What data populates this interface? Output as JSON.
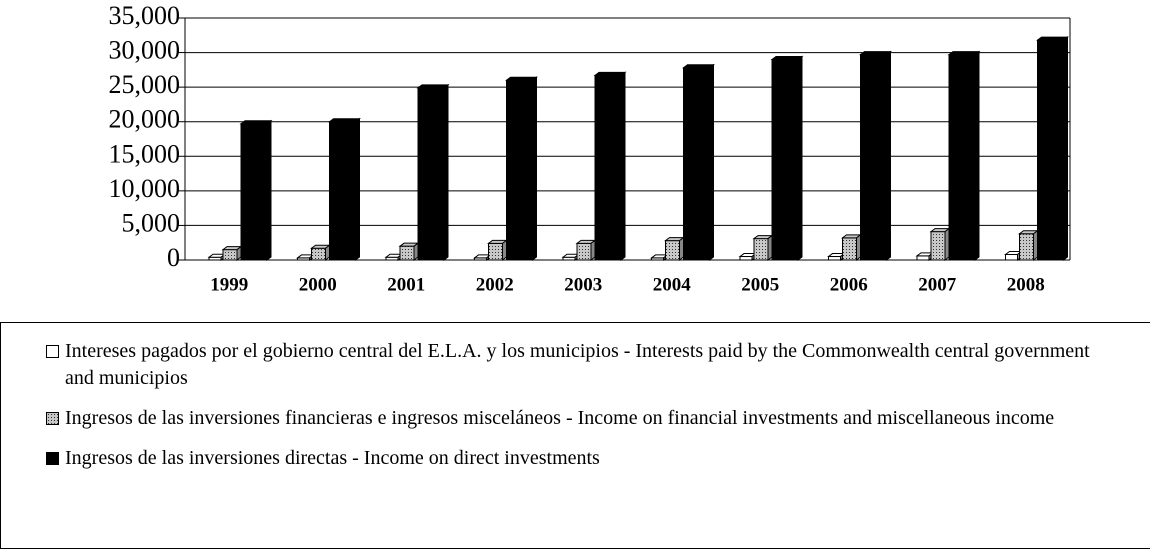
{
  "chart_data": {
    "type": "bar",
    "categories": [
      "1999",
      "2000",
      "2001",
      "2002",
      "2003",
      "2004",
      "2005",
      "2006",
      "2007",
      "2008"
    ],
    "series": [
      {
        "name": "Intereses pagados por el gobierno central del E.L.A. y los municipios - Interests paid by the Commonwealth central government and municipios",
        "color": "#ffffff",
        "values": [
          400,
          300,
          400,
          300,
          400,
          300,
          500,
          500,
          600,
          800
        ]
      },
      {
        "name": "Ingresos de las inversiones financieras e ingresos misceláneos - Income on financial investments and miscellaneous income",
        "color": "#c8c8c8",
        "values": [
          1500,
          1700,
          2000,
          2400,
          2400,
          2800,
          3100,
          3200,
          4100,
          3800
        ]
      },
      {
        "name": "Ingresos de las inversiones directas - Income on direct investments",
        "color": "#000000",
        "values": [
          19700,
          20000,
          24900,
          26000,
          26700,
          27800,
          29000,
          29700,
          29700,
          31800
        ]
      }
    ],
    "ylim": [
      0,
      35000
    ],
    "yticks": [
      0,
      {
        "value": 5000,
        "label": "5,000"
      },
      {
        "value": 10000,
        "label": "10,000"
      },
      {
        "value": 15000,
        "label": "15,000"
      },
      {
        "value": 20000,
        "label": "20,000"
      },
      {
        "value": 25000,
        "label": "25,000"
      },
      {
        "value": 30000,
        "label": "30,000"
      },
      {
        "value": 35000,
        "label": "35,000"
      }
    ],
    "grid": true
  }
}
